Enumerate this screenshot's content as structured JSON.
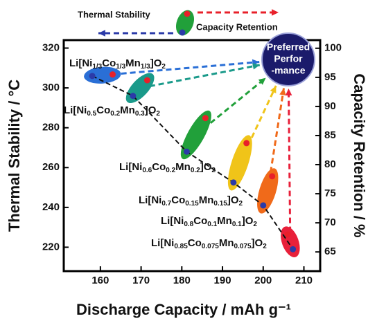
{
  "chart_data": {
    "type": "scatter",
    "xlabel": "Discharge Capacity / mAh g⁻¹",
    "ylabel": "Thermal Stability / °C",
    "y2label": "Capacity Retention / %",
    "xlim": [
      151,
      214
    ],
    "xticks": [
      160,
      170,
      180,
      190,
      200,
      210
    ],
    "ylim": [
      208,
      324
    ],
    "yticks": [
      220,
      240,
      260,
      280,
      300,
      320
    ],
    "y2lim": [
      61.7,
      101.4
    ],
    "y2ticks": [
      65,
      70,
      75,
      80,
      85,
      90,
      95,
      100
    ],
    "materials": [
      "Li[Ni1/3Co1/3Mn1/3]O2",
      "Li[Ni0.5Co0.2Mn0.3]O2",
      "Li[Ni0.6Co0.2Mn0.2]O2",
      "Li[Ni0.7Co0.15Mn0.15]O2",
      "Li[Ni0.8Co0.1Mn0.1]O2",
      "Li[Ni0.85Co0.075Mn0.075]O2"
    ],
    "marker_colors": [
      "#2a6fd6",
      "#1a9a8a",
      "#21a03a",
      "#f0c419",
      "#f06a1a",
      "#e8203a"
    ],
    "series": [
      {
        "name": "Thermal Stability",
        "color": "#2b3aa8",
        "x": [
          158,
          168,
          181.2,
          192.7,
          200,
          207.3
        ],
        "values": [
          306,
          296,
          268,
          252.5,
          241,
          219
        ]
      },
      {
        "name": "Capacity Retention",
        "color": "#e8202a",
        "axis": "y2",
        "x": [
          163,
          171.5,
          185.8,
          195.9,
          202.2,
          206
        ],
        "values": [
          95.5,
          94.5,
          88,
          83.7,
          78,
          68
        ]
      }
    ],
    "target_label": [
      "Preferred",
      "Perfor",
      "-mance"
    ]
  }
}
